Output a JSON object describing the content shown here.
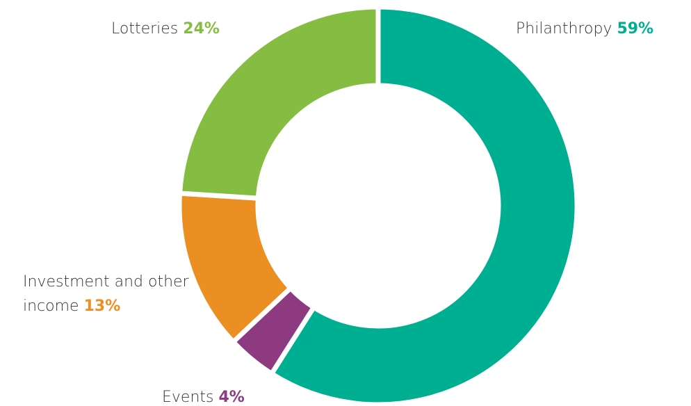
{
  "chart_data": {
    "type": "donut",
    "categories": [
      "Philanthropy",
      "Events",
      "Investment and other income",
      "Lotteries"
    ],
    "values": [
      59,
      4,
      13,
      24
    ],
    "value_labels": [
      "59%",
      "4%",
      "13%",
      "24%"
    ],
    "colors": [
      "#00ae91",
      "#8e3a80",
      "#ec8f22",
      "#84bd41"
    ]
  }
}
